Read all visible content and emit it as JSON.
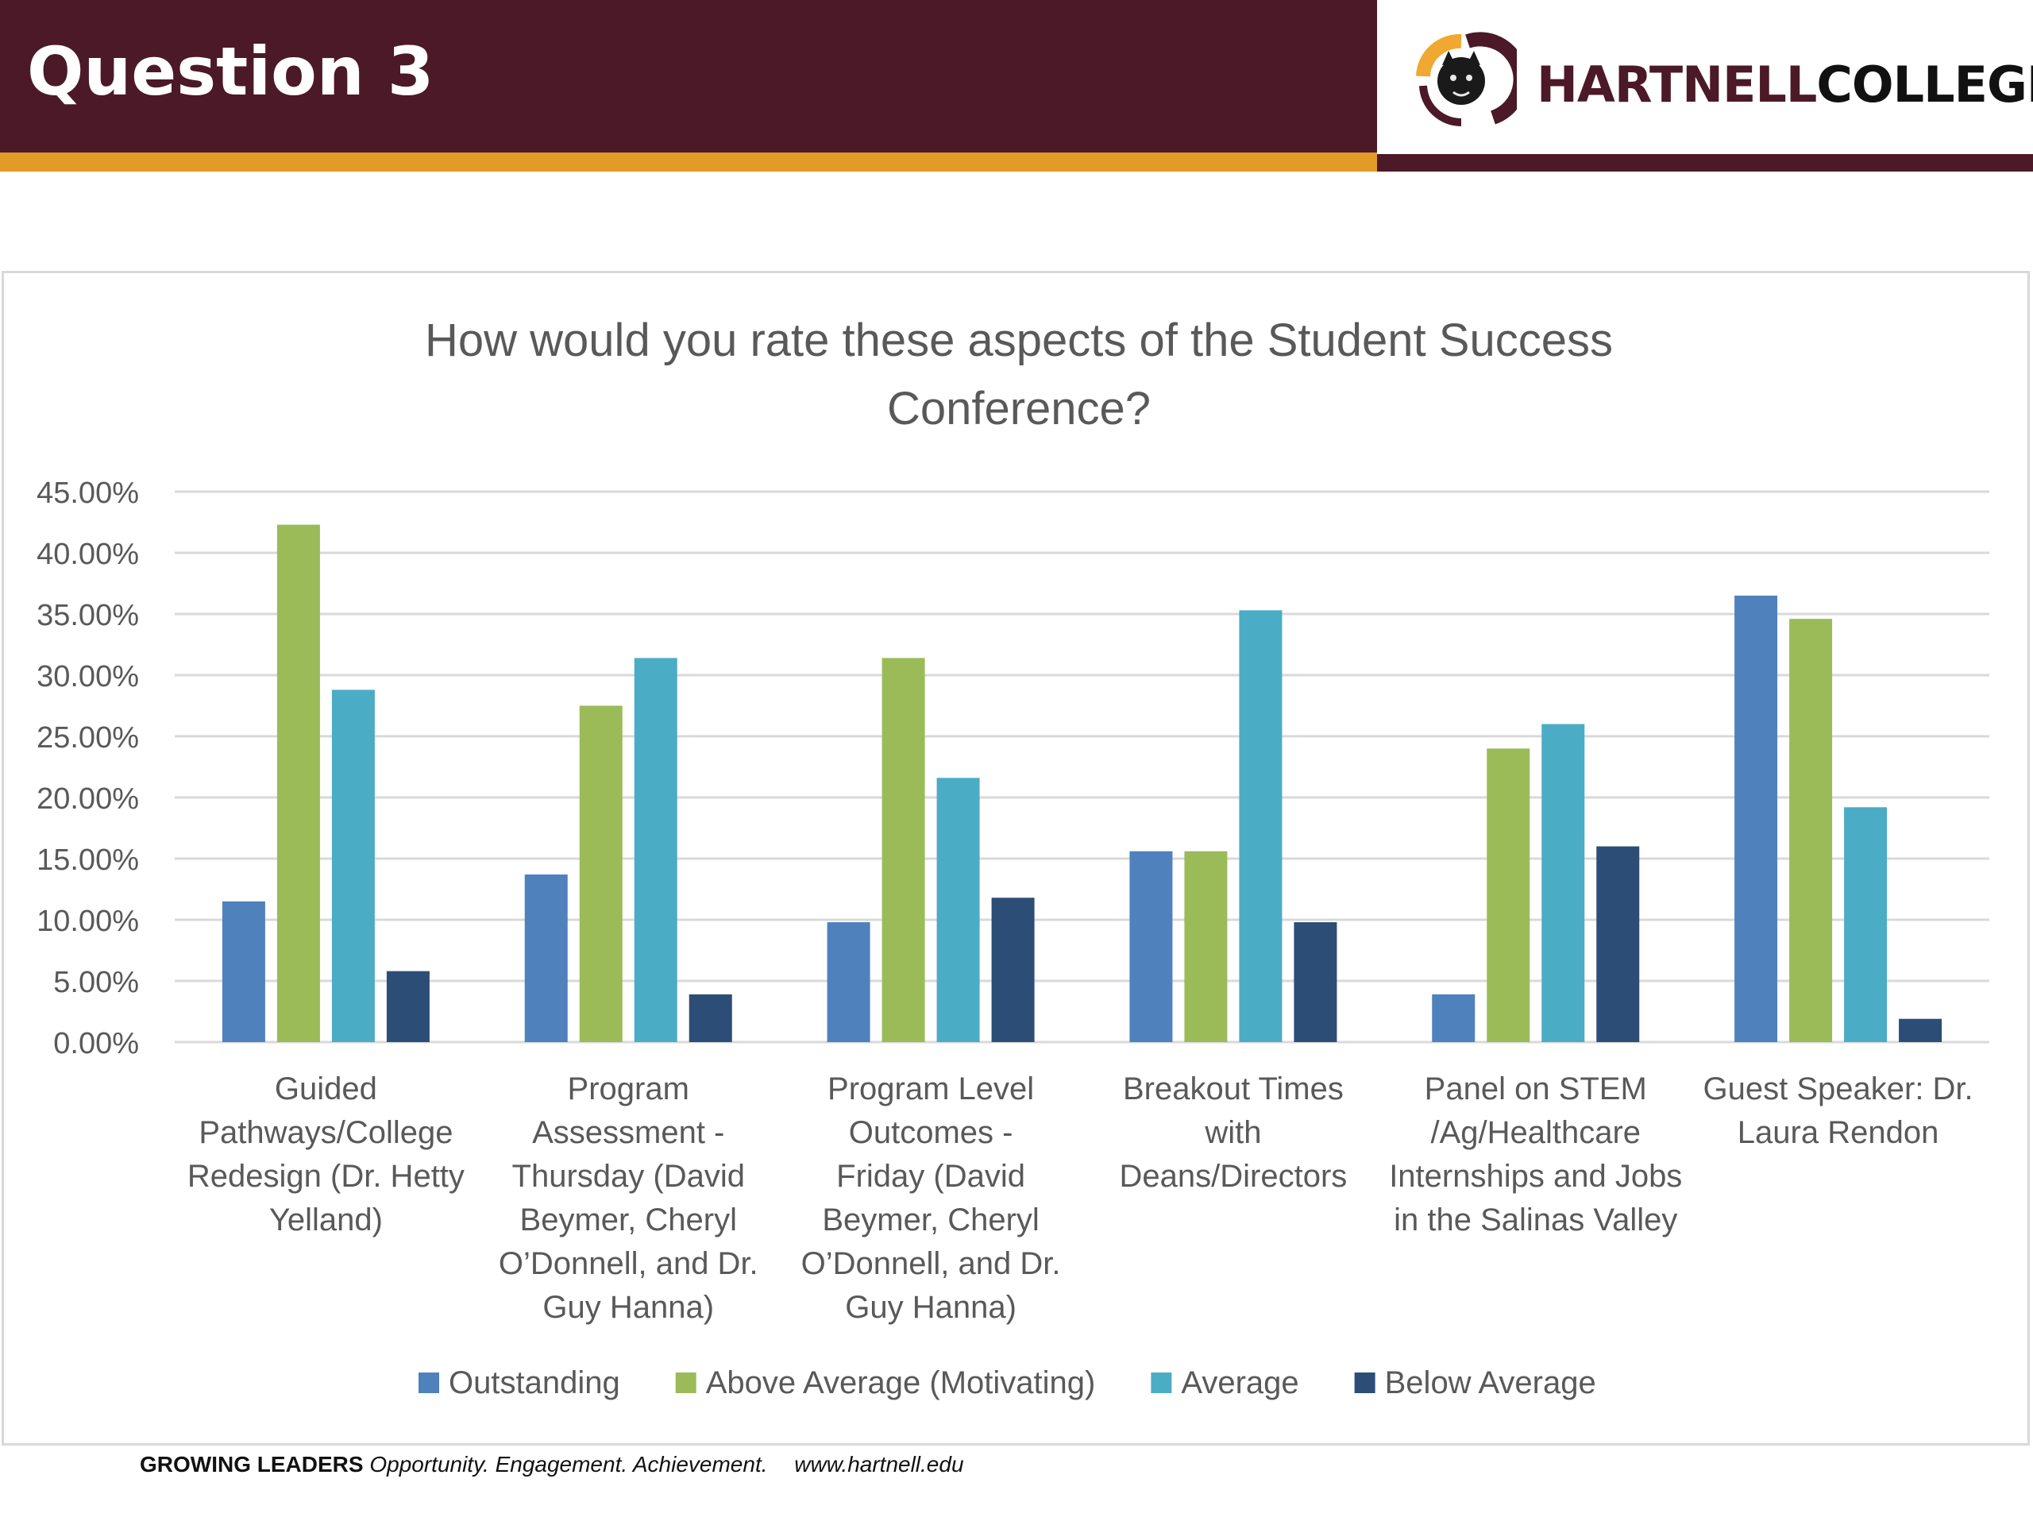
{
  "header": {
    "title": "Question 3",
    "logo": {
      "word1": "HARTNELL",
      "word2": "COLLEGE"
    }
  },
  "footer": {
    "tagline_bold": "GROWING LEADERS",
    "tagline_italic": "Opportunity. Engagement. Achievement.",
    "url": "www.hartnell.edu"
  },
  "chart_data": {
    "type": "bar",
    "title_lines": [
      "How would you rate these aspects of the Student Success",
      "Conference?"
    ],
    "ylim": [
      0,
      45
    ],
    "yticks": [
      "0.00%",
      "5.00%",
      "10.00%",
      "15.00%",
      "20.00%",
      "25.00%",
      "30.00%",
      "35.00%",
      "40.00%",
      "45.00%"
    ],
    "grid": true,
    "legend_position": "bottom",
    "categories": [
      [
        "Guided",
        "Pathways/College",
        "Redesign (Dr. Hetty",
        "Yelland)"
      ],
      [
        "Program",
        "Assessment -",
        "Thursday (David",
        "Beymer, Cheryl",
        "O’Donnell, and Dr.",
        "Guy Hanna)"
      ],
      [
        "Program Level",
        "Outcomes -",
        "Friday (David",
        "Beymer, Cheryl",
        "O’Donnell, and Dr.",
        "Guy Hanna)"
      ],
      [
        "Breakout Times",
        "with",
        "Deans/Directors"
      ],
      [
        "Panel on STEM",
        "/Ag/Healthcare",
        "Internships and Jobs",
        "in the Salinas Valley"
      ],
      [
        "Guest Speaker: Dr.",
        "Laura Rendon"
      ]
    ],
    "series": [
      {
        "name": "Outstanding",
        "color": "#4f81bd",
        "values": [
          11.5,
          13.7,
          9.8,
          15.6,
          3.9,
          36.5
        ]
      },
      {
        "name": "Above Average (Motivating)",
        "color": "#9bbb59",
        "values": [
          42.3,
          27.5,
          31.4,
          15.6,
          24.0,
          34.6
        ]
      },
      {
        "name": "Average",
        "color": "#4bacc6",
        "values": [
          28.8,
          31.4,
          21.6,
          35.3,
          26.0,
          19.2
        ]
      },
      {
        "name": "Below Average",
        "color": "#2c4d75",
        "values": [
          5.8,
          3.9,
          11.8,
          9.8,
          16.0,
          1.9
        ]
      }
    ]
  }
}
